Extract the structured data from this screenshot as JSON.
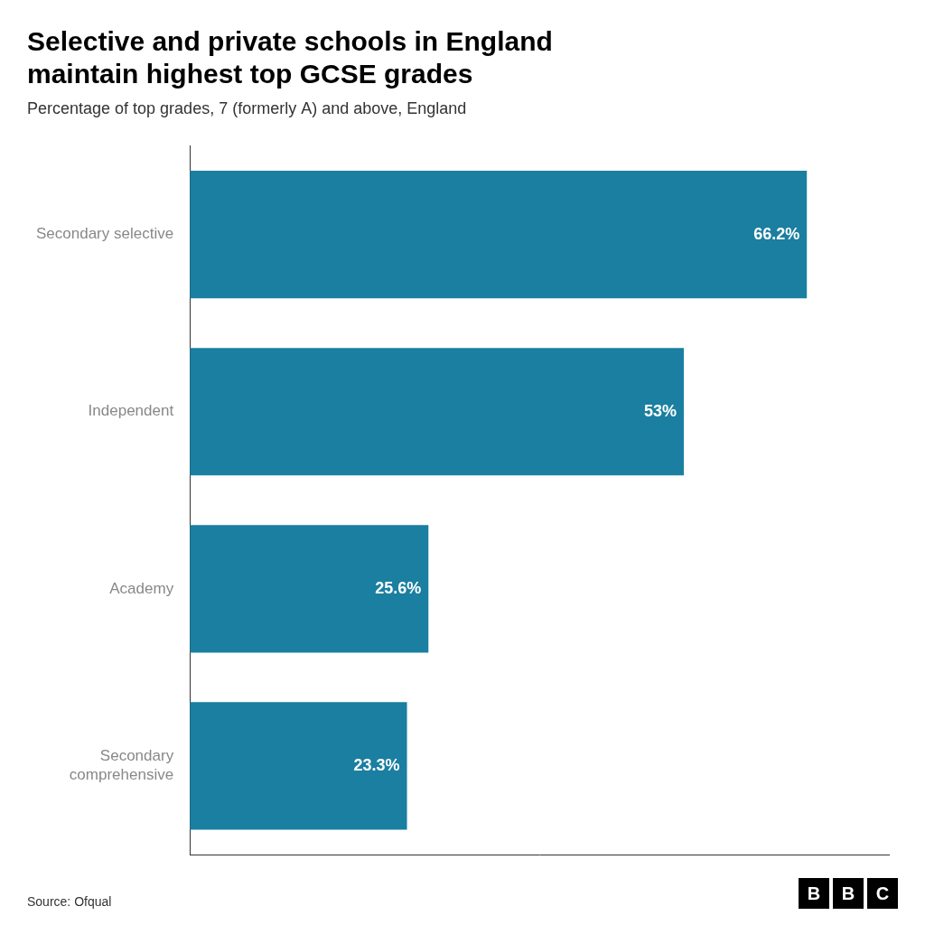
{
  "chart_data": {
    "type": "bar",
    "orientation": "horizontal",
    "title": [
      "Selective and private schools in England",
      "maintain highest top GCSE grades"
    ],
    "subtitle": "Percentage of top grades, 7 (formerly A) and above, England",
    "categories": [
      "Secondary selective",
      "Independent",
      "Academy",
      "Secondary\ncomprehensive"
    ],
    "values": [
      66.2,
      53.0,
      25.6,
      23.3
    ],
    "value_labels": [
      "66.2%",
      "53%",
      "25.6%",
      "23.3%"
    ],
    "data_labels": true,
    "color": "#1a7fa0",
    "xlim": [
      0,
      75
    ],
    "xticks": [],
    "tick_labels": "y",
    "grid": false,
    "annotations": [
      "Source: Ofqual",
      "BBC"
    ]
  }
}
